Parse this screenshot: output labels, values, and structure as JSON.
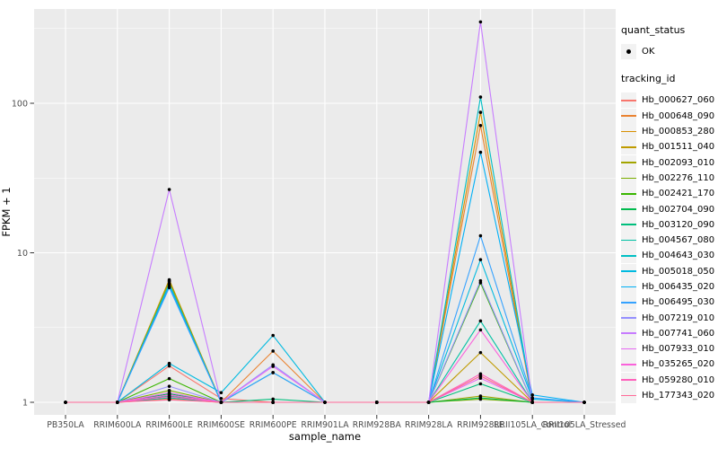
{
  "figure": {
    "background": "#FFFFFF",
    "panel_background": "#EBEBEB",
    "gridline_color": "#FFFFFF",
    "tick_mark_color": "#333333",
    "axis_text_color": "#4D4D4D",
    "point_color": "#000000",
    "legend_key_background": "#F2F2F2"
  },
  "legend": {
    "quant_status": {
      "title": "quant_status",
      "items": [
        {
          "label": "OK",
          "symbol": "point"
        }
      ]
    },
    "tracking_id": {
      "title": "tracking_id"
    }
  },
  "chart_data": {
    "type": "line",
    "title": "",
    "xlabel": "sample_name",
    "ylabel": "FPKM + 1",
    "y_scale": "log10",
    "grid": true,
    "legend_position": "right",
    "y_ticks": [
      1,
      10,
      100
    ],
    "y_minor_ticks": [
      3.162,
      31.62,
      316.2
    ],
    "ylim": [
      1,
      430
    ],
    "point_shape": "filled-circle",
    "categories": [
      "PB350LA",
      "RRIM600LA",
      "RRIM600LE",
      "RRIM600SE",
      "RRIM600PE",
      "RRIM901LA",
      "RRIM928BA",
      "RRIM928LA",
      "RRIM928LE",
      "RRII105LA_Control",
      "RRII105LA_Stressed"
    ],
    "series": [
      {
        "name": "Hb_000627_060",
        "color": "#F8766D",
        "values": [
          1,
          1,
          1.75,
          1.06,
          1,
          1,
          1,
          1,
          1.5,
          1,
          1
        ]
      },
      {
        "name": "Hb_000648_090",
        "color": "#EA8331",
        "values": [
          1,
          1,
          1.05,
          1,
          2.2,
          1,
          1,
          1,
          71,
          1,
          1
        ]
      },
      {
        "name": "Hb_000853_280",
        "color": "#D89000",
        "values": [
          1,
          1,
          6.6,
          1,
          1,
          1,
          1,
          1,
          87,
          1,
          1
        ]
      },
      {
        "name": "Hb_001511_040",
        "color": "#C09B00",
        "values": [
          1,
          1,
          6.4,
          1,
          1,
          1,
          1,
          1,
          2.15,
          1,
          1
        ]
      },
      {
        "name": "Hb_002093_010",
        "color": "#A3A500",
        "values": [
          1,
          1,
          6.5,
          1,
          1,
          1,
          1,
          1,
          1.1,
          1,
          1
        ]
      },
      {
        "name": "Hb_002276_110",
        "color": "#7CAE00",
        "values": [
          1,
          1,
          1.2,
          1,
          1,
          1,
          1,
          1,
          1.05,
          1,
          1
        ]
      },
      {
        "name": "Hb_002421_170",
        "color": "#39B600",
        "values": [
          1,
          1,
          1.44,
          1,
          1,
          1,
          1,
          1,
          6.3,
          1,
          1
        ]
      },
      {
        "name": "Hb_002704_090",
        "color": "#00BB4E",
        "values": [
          1,
          1,
          1.14,
          1,
          1,
          1,
          1,
          1,
          1.07,
          1,
          1
        ]
      },
      {
        "name": "Hb_003120_090",
        "color": "#00BF7D",
        "values": [
          1,
          1,
          1.1,
          1,
          1.05,
          1,
          1,
          1,
          1.33,
          1,
          1
        ]
      },
      {
        "name": "Hb_004567_080",
        "color": "#00C1A3",
        "values": [
          1,
          1,
          1.07,
          1,
          1.58,
          1,
          1,
          1,
          3.5,
          1,
          1
        ]
      },
      {
        "name": "Hb_004643_030",
        "color": "#00BFC4",
        "values": [
          1,
          1,
          6.2,
          1,
          1,
          1,
          1,
          1,
          110,
          1,
          1
        ]
      },
      {
        "name": "Hb_005018_050",
        "color": "#00BAE0",
        "values": [
          1,
          1,
          1.82,
          1.16,
          2.8,
          1,
          1,
          1,
          9,
          1.05,
          1
        ]
      },
      {
        "name": "Hb_006435_020",
        "color": "#00B0F6",
        "values": [
          1,
          1,
          6.0,
          1,
          1,
          1,
          1,
          1,
          47,
          1.12,
          1
        ]
      },
      {
        "name": "Hb_006495_030",
        "color": "#35A2FF",
        "values": [
          1,
          1,
          5.85,
          1,
          1.58,
          1,
          1,
          1,
          13,
          1.07,
          1
        ]
      },
      {
        "name": "Hb_007219_010",
        "color": "#9590FF",
        "values": [
          1,
          1,
          1.28,
          1,
          1.78,
          1,
          1,
          1,
          6.5,
          1,
          1
        ]
      },
      {
        "name": "Hb_007741_060",
        "color": "#C77CFF",
        "values": [
          1,
          1,
          26.5,
          1,
          1,
          1,
          1,
          1,
          350,
          1,
          1
        ]
      },
      {
        "name": "Hb_007933_010",
        "color": "#E76BF3",
        "values": [
          1,
          1,
          1.16,
          1,
          1.74,
          1,
          1,
          1,
          1.45,
          1,
          1
        ]
      },
      {
        "name": "Hb_035265_020",
        "color": "#FA62DB",
        "values": [
          1,
          1,
          1.12,
          1,
          1,
          1,
          1,
          1,
          3.05,
          1,
          1
        ]
      },
      {
        "name": "Hb_059280_010",
        "color": "#FF62BC",
        "values": [
          1,
          1,
          1.09,
          1,
          1,
          1,
          1,
          1,
          1.55,
          1,
          1
        ]
      },
      {
        "name": "Hb_177343_020",
        "color": "#FF6A98",
        "values": [
          1,
          1,
          1.04,
          1,
          1,
          1,
          1,
          1,
          1.5,
          1,
          1
        ]
      }
    ]
  }
}
